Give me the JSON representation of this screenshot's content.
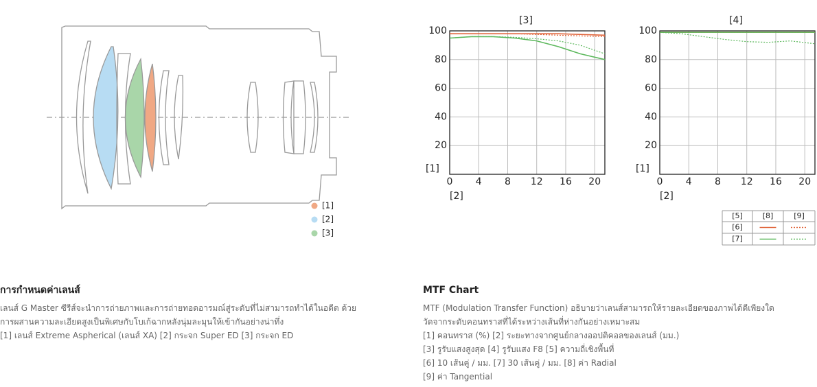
{
  "lens_legend": [
    "[1]",
    "[2]",
    "[3]"
  ],
  "chart_data": [
    {
      "type": "line",
      "title": "[3]",
      "y_label": "[1]",
      "x_label": "[2]",
      "x": [
        0,
        3,
        6,
        9,
        12,
        15,
        18,
        21.4
      ],
      "xlim": [
        0,
        21.4
      ],
      "xticks": [
        0,
        4,
        8,
        12,
        16,
        20
      ],
      "ylim": [
        0,
        100
      ],
      "yticks": [
        20,
        40,
        60,
        80,
        100
      ],
      "grid": true,
      "series": [
        {
          "color": "#e0643a",
          "style": "solid",
          "values": [
            98,
            98,
            98,
            98,
            98,
            98,
            97.5,
            97
          ]
        },
        {
          "color": "#e0643a",
          "style": "dotted",
          "values": [
            98,
            98,
            98,
            98,
            97.5,
            97,
            96.5,
            96
          ]
        },
        {
          "color": "#5cb85c",
          "style": "solid",
          "values": [
            95,
            96,
            96,
            95,
            93,
            89,
            84,
            80
          ]
        },
        {
          "color": "#5cb85c",
          "style": "dotted",
          "values": [
            95,
            96,
            96,
            95.5,
            94.5,
            93,
            90,
            84
          ]
        }
      ]
    },
    {
      "type": "line",
      "title": "[4]",
      "y_label": "[1]",
      "x_label": "[2]",
      "x": [
        0,
        3,
        6,
        9,
        12,
        15,
        18,
        21.4
      ],
      "xlim": [
        0,
        21.4
      ],
      "xticks": [
        0,
        4,
        8,
        12,
        16,
        20
      ],
      "ylim": [
        0,
        100
      ],
      "yticks": [
        20,
        40,
        60,
        80,
        100
      ],
      "grid": true,
      "series": [
        {
          "color": "#e0643a",
          "style": "solid",
          "values": [
            99,
            99,
            99,
            99,
            99,
            99,
            99,
            99
          ]
        },
        {
          "color": "#e0643a",
          "style": "dotted",
          "values": [
            99,
            99,
            99,
            99,
            99,
            99,
            99,
            99
          ]
        },
        {
          "color": "#5cb85c",
          "style": "solid",
          "values": [
            99,
            99,
            99,
            99,
            99,
            99,
            99,
            99
          ]
        },
        {
          "color": "#5cb85c",
          "style": "dotted",
          "values": [
            99,
            98,
            96,
            94,
            92.5,
            92,
            93,
            91
          ]
        }
      ]
    }
  ],
  "mtf_legend": {
    "corner": "[5]",
    "columns": [
      "[8]",
      "[9]"
    ],
    "rows": [
      "[6]",
      "[7]"
    ]
  },
  "lens_text": {
    "heading": "การกำหนดค่าเลนส์",
    "lines": [
      "เลนส์ G Master ซีรีส์จะนำการถ่ายภาพและการถ่ายทอดอารมณ์สู่ระดับที่ไม่สามารถทำได้ในอดีต ด้วย",
      "การผสานความละเอียดสูงเป็นพิเศษกับโบเก้ฉากหลังนุ่มละมุนให้เข้ากันอย่างน่าทึ่ง",
      "[1] เลนส์ Extreme Aspherical (เลนส์ XA) [2] กระจก Super ED [3] กระจก ED"
    ]
  },
  "mtf_text": {
    "heading": "MTF Chart",
    "lines": [
      "MTF (Modulation Transfer Function) อธิบายว่าเลนส์สามารถให้รายละเอียดของภาพได้ดีเพียงใด",
      "วัดจากระดับคอนทราสที่ได้ระหว่างเส้นที่ห่างกันอย่างเหมาะสม",
      "[1] คอนทราส (%) [2] ระยะทางจากศูนย์กลางออปติคอลของเลนส์ (มม.)",
      "[3] รูรับแสงสูงสุด [4] รูรับแสง F8 [5] ความถี่เชิงพื้นที่",
      "[6] 10 เส้นคู่ / มม. [7] 30 เส้นคู่ / มม. [8] ค่า Radial",
      "[9] ค่า Tangential"
    ]
  }
}
